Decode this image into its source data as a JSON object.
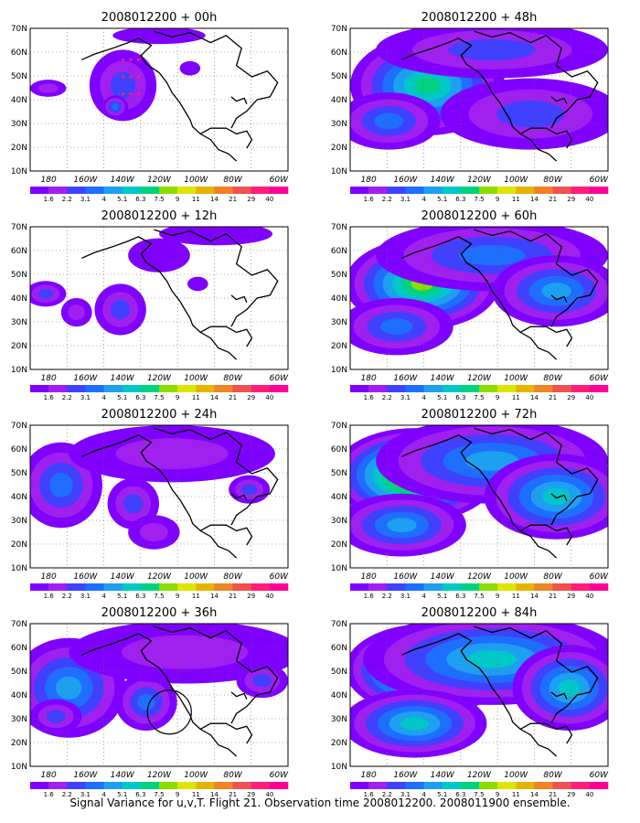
{
  "caption": "Signal Variance for u,v,T. Flight 21. Observation time 2008012200. 2008011900 ensemble.",
  "lat_labels": [
    "70N",
    "60N",
    "50N",
    "40N",
    "30N",
    "20N",
    "10N"
  ],
  "lon_labels": [
    "180",
    "160W",
    "140W",
    "120W",
    "100W",
    "80W",
    "60W"
  ],
  "colorbar": {
    "labels": [
      "1.6",
      "2.2",
      "3.1",
      "4",
      "5.1",
      "6.3",
      "7.5",
      "9",
      "11",
      "14",
      "21",
      "29",
      "40"
    ],
    "colors": [
      "#8000ff",
      "#a020f0",
      "#4040ff",
      "#1e6eff",
      "#1ea0f0",
      "#00c8c8",
      "#00d282",
      "#8cdc00",
      "#dce600",
      "#e6b400",
      "#f08228",
      "#f05050",
      "#ff1e78",
      "#ff0096"
    ]
  },
  "panels": [
    {
      "title": "2008012200 + 00h",
      "column": "left",
      "row": 0,
      "intensity": 0
    },
    {
      "title": "2008012200 + 12h",
      "column": "left",
      "row": 1,
      "intensity": 1
    },
    {
      "title": "2008012200 + 24h",
      "column": "left",
      "row": 2,
      "intensity": 2
    },
    {
      "title": "2008012200 + 36h",
      "column": "left",
      "row": 3,
      "intensity": 3
    },
    {
      "title": "2008012200 + 48h",
      "column": "right",
      "row": 0,
      "intensity": 4
    },
    {
      "title": "2008012200 + 60h",
      "column": "right",
      "row": 1,
      "intensity": 5
    },
    {
      "title": "2008012200 + 72h",
      "column": "right",
      "row": 2,
      "intensity": 6
    },
    {
      "title": "2008012200 + 84h",
      "column": "right",
      "row": 3,
      "intensity": 7
    }
  ]
}
